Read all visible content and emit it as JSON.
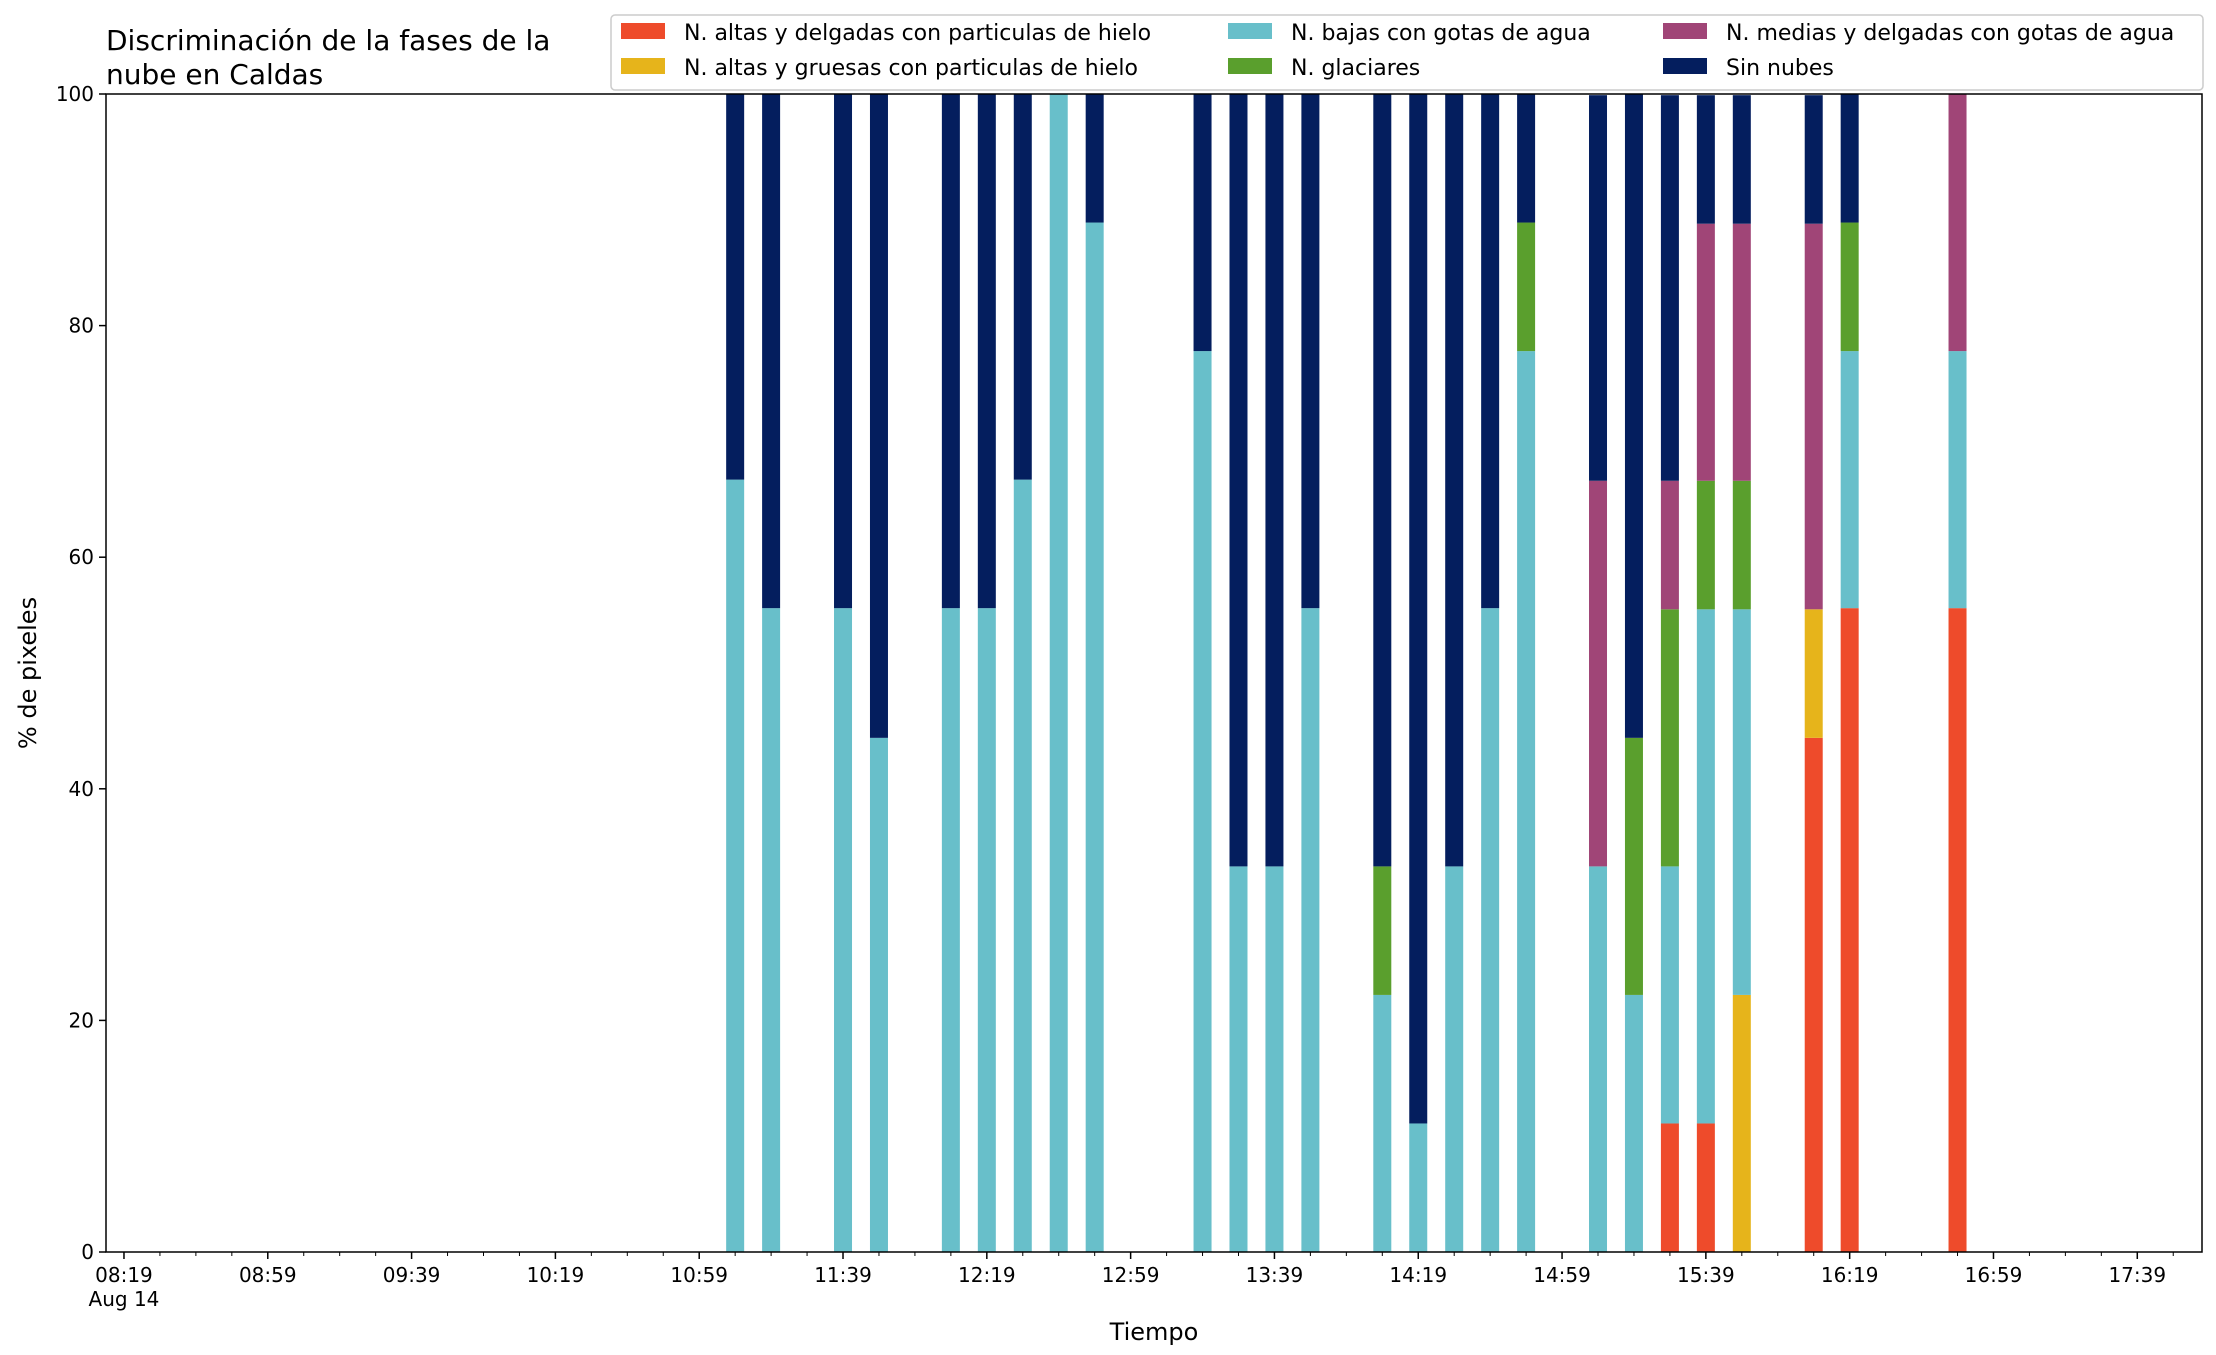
{
  "chart_data": {
    "type": "bar",
    "stacked": true,
    "title_lines": [
      "Discriminación de la fases de la",
      "nube en Caldas"
    ],
    "xlabel": "Tiempo",
    "ylabel": "% de pixeles",
    "ylim": [
      0,
      100
    ],
    "yticks": [
      0,
      20,
      40,
      60,
      80,
      100
    ],
    "x_range_minutes": [
      "08:14",
      "17:57"
    ],
    "xticks": [
      {
        "time": "08:19",
        "label": "08:19",
        "sublabel": "Aug 14"
      },
      {
        "time": "08:59",
        "label": "08:59"
      },
      {
        "time": "09:39",
        "label": "09:39"
      },
      {
        "time": "10:19",
        "label": "10:19"
      },
      {
        "time": "10:59",
        "label": "10:59"
      },
      {
        "time": "11:39",
        "label": "11:39"
      },
      {
        "time": "12:19",
        "label": "12:19"
      },
      {
        "time": "12:59",
        "label": "12:59"
      },
      {
        "time": "13:39",
        "label": "13:39"
      },
      {
        "time": "14:19",
        "label": "14:19"
      },
      {
        "time": "14:59",
        "label": "14:59"
      },
      {
        "time": "15:39",
        "label": "15:39"
      },
      {
        "time": "16:19",
        "label": "16:19"
      },
      {
        "time": "16:59",
        "label": "16:59"
      },
      {
        "time": "17:39",
        "label": "17:39"
      }
    ],
    "legend_position": "top-right",
    "series": [
      {
        "name": "N. altas y delgadas con particulas de hielo",
        "color": "#ee4b2b"
      },
      {
        "name": "N. altas y gruesas con particulas de hielo",
        "color": "#e6b41b"
      },
      {
        "name": "N. bajas con gotas de agua",
        "color": "#68bfca"
      },
      {
        "name": "N. glaciares",
        "color": "#5a9f2d"
      },
      {
        "name": "N. medias y delgadas con gotas de agua",
        "color": "#a04577"
      },
      {
        "name": "Sin nubes",
        "color": "#041e5e"
      }
    ],
    "bars": [
      {
        "time": "11:09",
        "values": [
          0,
          0,
          66.7,
          0,
          0,
          33.3
        ]
      },
      {
        "time": "11:19",
        "values": [
          0,
          0,
          55.6,
          0,
          0,
          44.4
        ]
      },
      {
        "time": "11:39",
        "values": [
          0,
          0,
          55.6,
          0,
          0,
          44.4
        ]
      },
      {
        "time": "11:49",
        "values": [
          0,
          0,
          44.4,
          0,
          0,
          55.6
        ]
      },
      {
        "time": "12:09",
        "values": [
          0,
          0,
          55.6,
          0,
          0,
          44.4
        ]
      },
      {
        "time": "12:19",
        "values": [
          0,
          0,
          55.6,
          0,
          0,
          44.4
        ]
      },
      {
        "time": "12:29",
        "values": [
          0,
          0,
          66.7,
          0,
          0,
          33.3
        ]
      },
      {
        "time": "12:39",
        "values": [
          0,
          0,
          100,
          0,
          0,
          0
        ]
      },
      {
        "time": "12:49",
        "values": [
          0,
          0,
          88.9,
          0,
          0,
          11.1
        ]
      },
      {
        "time": "13:19",
        "values": [
          0,
          0,
          77.8,
          0,
          0,
          22.2
        ]
      },
      {
        "time": "13:29",
        "values": [
          0,
          0,
          33.3,
          0,
          0,
          66.7
        ]
      },
      {
        "time": "13:39",
        "values": [
          0,
          0,
          33.3,
          0,
          0,
          66.7
        ]
      },
      {
        "time": "13:49",
        "values": [
          0,
          0,
          55.6,
          0,
          0,
          44.4
        ]
      },
      {
        "time": "14:09",
        "values": [
          0,
          0,
          22.2,
          11.1,
          0,
          66.7
        ]
      },
      {
        "time": "14:19",
        "values": [
          0,
          0,
          11.1,
          0,
          0,
          88.9
        ]
      },
      {
        "time": "14:29",
        "values": [
          0,
          0,
          33.3,
          0,
          0,
          66.7
        ]
      },
      {
        "time": "14:39",
        "values": [
          0,
          0,
          55.6,
          0,
          0,
          44.4
        ]
      },
      {
        "time": "14:49",
        "values": [
          0,
          0,
          77.8,
          11.1,
          0,
          11.1
        ]
      },
      {
        "time": "15:09",
        "values": [
          0,
          0,
          33.3,
          0,
          33.3,
          33.3
        ]
      },
      {
        "time": "15:19",
        "values": [
          0,
          0,
          22.2,
          22.2,
          0,
          55.6
        ]
      },
      {
        "time": "15:29",
        "values": [
          11.1,
          0,
          22.2,
          22.2,
          11.1,
          33.3
        ]
      },
      {
        "time": "15:39",
        "values": [
          11.1,
          0,
          44.4,
          11.1,
          22.2,
          11.1
        ]
      },
      {
        "time": "15:49",
        "values": [
          0,
          22.2,
          33.3,
          11.1,
          22.2,
          11.1
        ]
      },
      {
        "time": "16:09",
        "values": [
          44.4,
          11.1,
          0,
          0,
          33.3,
          11.1
        ]
      },
      {
        "time": "16:19",
        "values": [
          55.6,
          0,
          22.2,
          11.1,
          0,
          11.1
        ]
      },
      {
        "time": "16:49",
        "values": [
          55.6,
          0,
          22.2,
          0,
          22.2,
          0
        ]
      }
    ]
  }
}
